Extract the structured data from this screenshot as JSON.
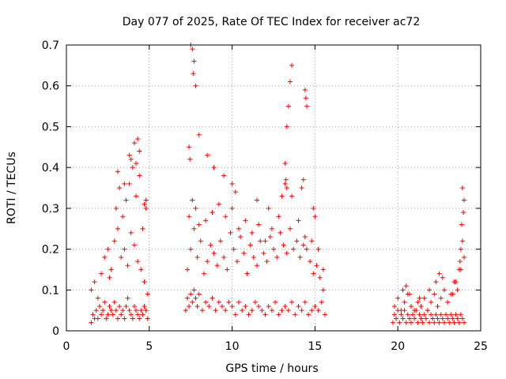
{
  "chart_data": {
    "type": "scatter",
    "title": "Day 077 of 2025, Rate Of TEC Index for receiver ac72",
    "xlabel": "GPS time / hours",
    "ylabel": "ROTI / TECUs",
    "xlim": [
      0,
      25
    ],
    "ylim": [
      0,
      0.7
    ],
    "xticks": [
      0,
      5,
      10,
      15,
      20,
      25
    ],
    "xtick_labels": [
      "0",
      "5",
      "10",
      "15",
      "20",
      "25"
    ],
    "yticks": [
      0,
      0.1,
      0.2,
      0.3,
      0.4,
      0.5,
      0.6,
      0.7
    ],
    "ytick_labels": [
      "0",
      "0.1",
      "0.2",
      "0.3",
      "0.4",
      "0.5",
      "0.6",
      "0.7"
    ],
    "grid": true,
    "marker": "plus",
    "color": "#ff0000",
    "series": [
      {
        "x": [
          1.5,
          1.6,
          1.7,
          1.8,
          1.9,
          2.0,
          2.1,
          2.2,
          2.3,
          2.4,
          2.5,
          2.6,
          2.7,
          2.8,
          2.9,
          3.0,
          3.1,
          3.2,
          3.3,
          3.4,
          3.5,
          3.6,
          3.7,
          3.8,
          3.9,
          4.0,
          4.1,
          4.2,
          4.3,
          4.4,
          4.5,
          4.6,
          4.7,
          4.8,
          4.9,
          1.5,
          1.7,
          1.9,
          2.1,
          2.3,
          2.5,
          2.7,
          2.9,
          3.1,
          3.3,
          3.5,
          3.7,
          3.9,
          4.1,
          4.3,
          4.5,
          4.7,
          4.9,
          2.6,
          3.0,
          3.2,
          3.4,
          3.6,
          3.8,
          4.0,
          4.2,
          4.4,
          4.6,
          4.8,
          3.1,
          3.5,
          3.9,
          4.1,
          4.3,
          4.4,
          4.2,
          3.8,
          4.7,
          4.8,
          7.2,
          7.3,
          7.4,
          7.5,
          7.6,
          7.7,
          7.8,
          7.9,
          8.0,
          8.2,
          8.4,
          8.6,
          8.8,
          9.0,
          9.2,
          9.4,
          9.6,
          9.8,
          10.0,
          10.2,
          10.4,
          10.6,
          10.8,
          11.0,
          11.2,
          11.4,
          11.6,
          11.8,
          12.0,
          12.2,
          12.4,
          12.6,
          12.8,
          13.0,
          13.2,
          13.4,
          13.6,
          13.8,
          14.0,
          14.2,
          14.4,
          14.6,
          14.8,
          15.0,
          15.2,
          15.4,
          15.6,
          7.3,
          7.5,
          7.7,
          7.9,
          8.1,
          8.3,
          8.5,
          8.7,
          8.9,
          9.1,
          9.3,
          9.5,
          9.7,
          9.9,
          10.1,
          10.3,
          10.5,
          10.7,
          10.9,
          11.1,
          11.3,
          11.5,
          11.7,
          11.9,
          12.1,
          12.3,
          12.5,
          12.7,
          12.9,
          13.1,
          13.3,
          13.5,
          13.7,
          13.9,
          14.1,
          14.3,
          14.5,
          14.7,
          14.9,
          15.1,
          15.3,
          15.5,
          7.4,
          7.6,
          7.8,
          8.0,
          8.4,
          8.8,
          9.2,
          9.6,
          10.0,
          10.4,
          10.8,
          11.2,
          11.6,
          12.0,
          12.4,
          12.8,
          13.2,
          13.6,
          14.0,
          14.4,
          14.8,
          15.2,
          15.5,
          7.5,
          7.6,
          7.7,
          7.65,
          7.8,
          8.0,
          7.4,
          7.45,
          8.5,
          8.9,
          9.5,
          10.0,
          10.2,
          11.5,
          12.2,
          13.0,
          13.3,
          13.4,
          13.5,
          13.2,
          13.25,
          13.3,
          13.6,
          14.4,
          14.45,
          14.5,
          14.3,
          14.2,
          14.9,
          15.0,
          19.7,
          19.8,
          19.9,
          20.0,
          20.1,
          20.2,
          20.3,
          20.4,
          20.5,
          20.6,
          20.7,
          20.8,
          20.9,
          21.0,
          21.1,
          21.2,
          21.3,
          21.4,
          21.5,
          21.6,
          21.7,
          21.8,
          21.9,
          22.0,
          22.1,
          22.2,
          22.3,
          22.4,
          22.5,
          22.6,
          22.7,
          22.8,
          22.9,
          23.0,
          23.1,
          23.2,
          23.3,
          23.4,
          23.5,
          23.6,
          23.7,
          23.8,
          23.9,
          24.0,
          19.8,
          20.0,
          20.2,
          20.4,
          20.6,
          20.8,
          21.0,
          21.2,
          21.4,
          21.6,
          21.8,
          22.0,
          22.2,
          22.4,
          22.6,
          22.8,
          23.0,
          23.2,
          23.4,
          23.6,
          23.8,
          24.0,
          20.3,
          20.5,
          20.7,
          21.3,
          21.9,
          22.3,
          22.5,
          22.7,
          23.3,
          23.5,
          23.7,
          23.8,
          23.9,
          23.85,
          23.95,
          24.0,
          23.9,
          23.75
        ],
        "y": [
          0.02,
          0.04,
          0.03,
          0.05,
          0.03,
          0.06,
          0.04,
          0.05,
          0.07,
          0.03,
          0.04,
          0.06,
          0.05,
          0.04,
          0.07,
          0.05,
          0.03,
          0.06,
          0.04,
          0.05,
          0.03,
          0.06,
          0.08,
          0.05,
          0.04,
          0.03,
          0.06,
          0.05,
          0.04,
          0.03,
          0.05,
          0.04,
          0.06,
          0.05,
          0.03,
          0.1,
          0.12,
          0.08,
          0.14,
          0.18,
          0.2,
          0.15,
          0.22,
          0.25,
          0.18,
          0.2,
          0.16,
          0.24,
          0.21,
          0.17,
          0.15,
          0.12,
          0.09,
          0.13,
          0.3,
          0.35,
          0.28,
          0.32,
          0.36,
          0.4,
          0.33,
          0.38,
          0.25,
          0.3,
          0.39,
          0.36,
          0.42,
          0.46,
          0.47,
          0.44,
          0.41,
          0.43,
          0.31,
          0.32,
          0.05,
          0.08,
          0.06,
          0.09,
          0.07,
          0.1,
          0.08,
          0.06,
          0.09,
          0.05,
          0.07,
          0.06,
          0.08,
          0.05,
          0.07,
          0.06,
          0.05,
          0.07,
          0.06,
          0.04,
          0.07,
          0.05,
          0.06,
          0.04,
          0.05,
          0.07,
          0.06,
          0.05,
          0.04,
          0.06,
          0.05,
          0.07,
          0.04,
          0.05,
          0.06,
          0.05,
          0.07,
          0.04,
          0.06,
          0.05,
          0.07,
          0.04,
          0.05,
          0.06,
          0.05,
          0.07,
          0.04,
          0.15,
          0.2,
          0.25,
          0.18,
          0.22,
          0.14,
          0.17,
          0.21,
          0.19,
          0.16,
          0.22,
          0.18,
          0.15,
          0.24,
          0.2,
          0.17,
          0.23,
          0.19,
          0.14,
          0.21,
          0.18,
          0.16,
          0.22,
          0.19,
          0.17,
          0.23,
          0.2,
          0.18,
          0.24,
          0.21,
          0.19,
          0.25,
          0.2,
          0.22,
          0.18,
          0.21,
          0.2,
          0.17,
          0.14,
          0.16,
          0.13,
          0.1,
          0.28,
          0.32,
          0.3,
          0.26,
          0.27,
          0.29,
          0.31,
          0.28,
          0.3,
          0.25,
          0.27,
          0.24,
          0.26,
          0.22,
          0.25,
          0.28,
          0.36,
          0.33,
          0.27,
          0.23,
          0.22,
          0.2,
          0.15,
          0.7,
          0.69,
          0.66,
          0.63,
          0.6,
          0.48,
          0.45,
          0.42,
          0.43,
          0.4,
          0.38,
          0.36,
          0.34,
          0.32,
          0.3,
          0.33,
          0.5,
          0.55,
          0.61,
          0.41,
          0.37,
          0.35,
          0.65,
          0.59,
          0.57,
          0.55,
          0.37,
          0.35,
          0.3,
          0.28,
          0.02,
          0.04,
          0.03,
          0.05,
          0.02,
          0.04,
          0.03,
          0.05,
          0.02,
          0.04,
          0.03,
          0.02,
          0.04,
          0.03,
          0.05,
          0.02,
          0.04,
          0.03,
          0.02,
          0.04,
          0.03,
          0.05,
          0.02,
          0.04,
          0.03,
          0.02,
          0.04,
          0.03,
          0.02,
          0.04,
          0.03,
          0.02,
          0.04,
          0.03,
          0.02,
          0.04,
          0.03,
          0.02,
          0.04,
          0.03,
          0.02,
          0.04,
          0.03,
          0.02,
          0.06,
          0.08,
          0.05,
          0.07,
          0.09,
          0.06,
          0.05,
          0.07,
          0.06,
          0.08,
          0.05,
          0.07,
          0.09,
          0.06,
          0.08,
          0.1,
          0.07,
          0.09,
          0.12,
          0.1,
          0.15,
          0.18,
          0.1,
          0.11,
          0.09,
          0.08,
          0.1,
          0.12,
          0.14,
          0.13,
          0.09,
          0.12,
          0.15,
          0.2,
          0.22,
          0.26,
          0.29,
          0.32,
          0.35,
          0.17
        ]
      }
    ]
  }
}
